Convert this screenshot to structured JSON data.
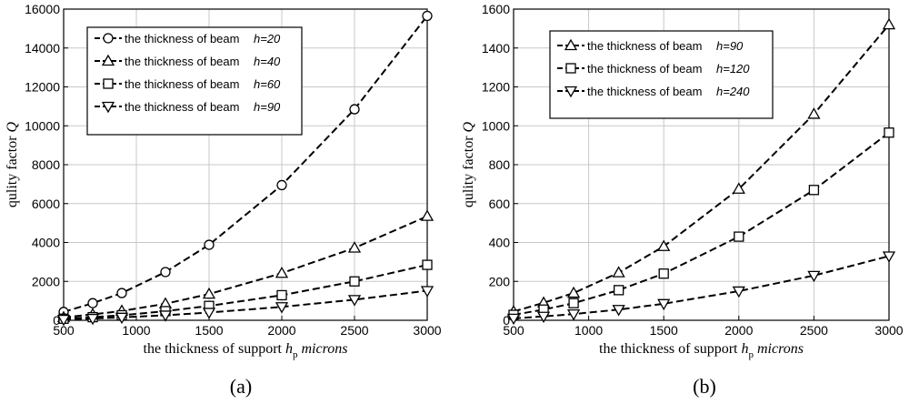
{
  "chart_data": [
    {
      "type": "line",
      "caption": "(a)",
      "xlabel": "the thickness of support",
      "xlabel_symbol": "h",
      "xlabel_sub": "p",
      "xlabel_unit": "microns",
      "ylabel": "qulity factor",
      "ylabel_symbol": "Q",
      "xlim": [
        500,
        3000
      ],
      "ylim": [
        0,
        16000
      ],
      "xticks": [
        "500",
        "1000",
        "1500",
        "2000",
        "2500",
        "3000"
      ],
      "yticks": [
        "0",
        "2000",
        "4000",
        "6000",
        "8000",
        "10000",
        "12000",
        "14000",
        "16000"
      ],
      "grid": true,
      "legend_position": "top-left",
      "x": [
        500,
        700,
        900,
        1200,
        1500,
        2000,
        2500,
        3000
      ],
      "series": [
        {
          "name": "the thickness of beam",
          "param": "h=20",
          "marker": "circle",
          "values": [
            430,
            880,
            1400,
            2480,
            3880,
            6950,
            10850,
            15650
          ]
        },
        {
          "name": "the thickness of beam",
          "param": "h=40",
          "marker": "triangle-up",
          "values": [
            150,
            300,
            480,
            850,
            1350,
            2420,
            3720,
            5350
          ]
        },
        {
          "name": "the thickness of beam",
          "param": "h=60",
          "marker": "square",
          "values": [
            80,
            160,
            260,
            470,
            740,
            1290,
            2000,
            2850
          ]
        },
        {
          "name": "the thickness of beam",
          "param": "h=90",
          "marker": "triangle-down",
          "values": [
            40,
            90,
            150,
            260,
            400,
            690,
            1060,
            1520
          ]
        }
      ]
    },
    {
      "type": "line",
      "caption": "(b)",
      "xlabel": "the thickness of support",
      "xlabel_symbol": "h",
      "xlabel_sub": "p",
      "xlabel_unit": "microns",
      "ylabel": "qulity factor",
      "ylabel_symbol": "Q",
      "xlim": [
        500,
        3000
      ],
      "ylim": [
        0,
        1600
      ],
      "xticks": [
        "500",
        "1000",
        "1500",
        "2000",
        "2500",
        "3000"
      ],
      "yticks": [
        "0",
        "200",
        "400",
        "600",
        "800",
        "1000",
        "1200",
        "1400",
        "1600"
      ],
      "grid": true,
      "legend_position": "top-left",
      "x": [
        500,
        700,
        900,
        1200,
        1500,
        2000,
        2500,
        3000
      ],
      "series": [
        {
          "name": "the thickness of beam",
          "param": "h=90",
          "marker": "triangle-up",
          "values": [
            45,
            90,
            140,
            245,
            380,
            675,
            1060,
            1520
          ]
        },
        {
          "name": "the thickness of beam",
          "param": "h=120",
          "marker": "square",
          "values": [
            28,
            55,
            88,
            155,
            240,
            430,
            670,
            965
          ]
        },
        {
          "name": "the thickness of beam",
          "param": "h=240",
          "marker": "triangle-down",
          "values": [
            10,
            20,
            32,
            55,
            85,
            150,
            230,
            330
          ]
        }
      ]
    }
  ]
}
